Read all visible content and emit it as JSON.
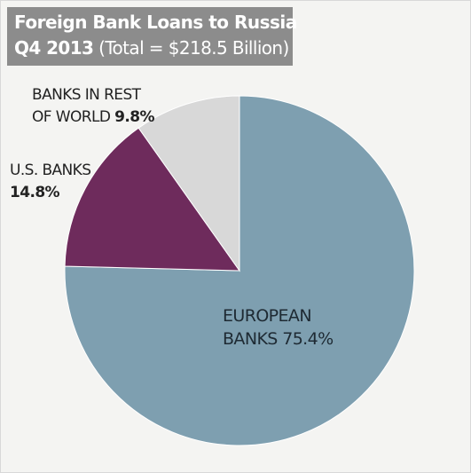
{
  "title": {
    "line1": "Foreign Bank Loans to Russia",
    "line2_bold": "Q4 2013",
    "line2_rest": " (Total = $218.5 Billion)"
  },
  "chart_data": {
    "type": "pie",
    "title": "Foreign Bank Loans to Russia Q4 2013 (Total = $218.5 Billion)",
    "slices": [
      {
        "name": "EUROPEAN BANKS",
        "value": 75.4,
        "label_line1": "EUROPEAN",
        "label_line2": "BANKS 75.4%",
        "color": "#7e9fb0"
      },
      {
        "name": "U.S. BANKS",
        "value": 14.8,
        "label_line1": "U.S. BANKS",
        "label_line2": "14.8%",
        "color": "#6e2b5c"
      },
      {
        "name": "BANKS IN REST OF WORLD",
        "value": 9.8,
        "label_line1": "BANKS IN REST",
        "label_line2": "OF WORLD ",
        "label_pct": "9.8%",
        "color": "#d8d8d8"
      }
    ],
    "start": "12 o'clock",
    "direction": "clockwise"
  }
}
